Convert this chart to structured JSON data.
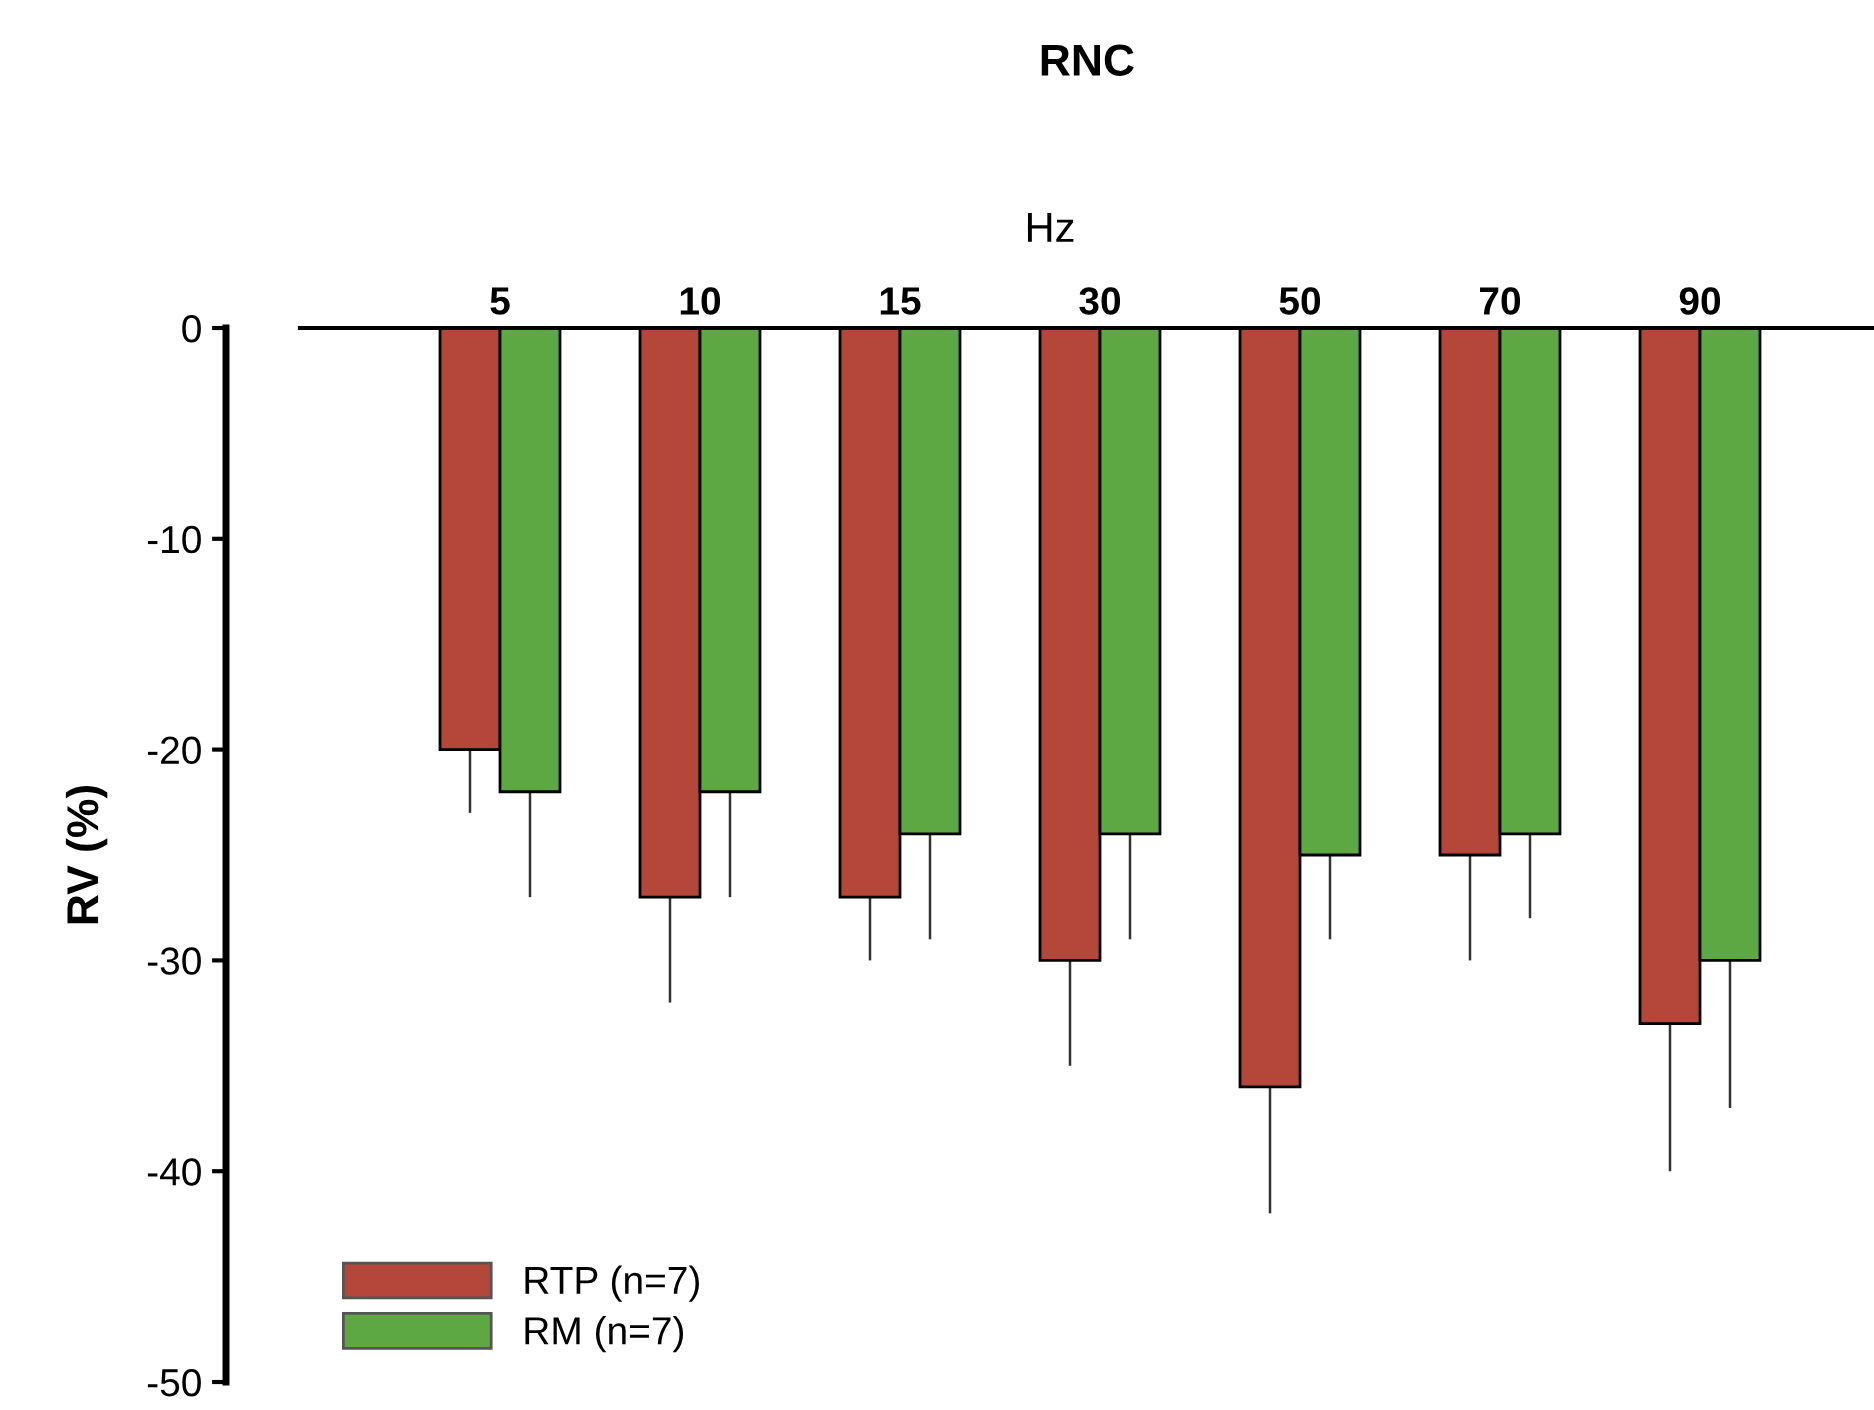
{
  "chart_data": {
    "type": "bar",
    "title": "RNC",
    "xlabel": "Hz",
    "ylabel": "RV (%)",
    "categories": [
      "5",
      "10",
      "15",
      "30",
      "50",
      "70",
      "90"
    ],
    "series": [
      {
        "name": "RTP (n=7)",
        "color": "#b5473a",
        "values": [
          -20,
          -27,
          -27,
          -30,
          -36,
          -25,
          -33
        ],
        "errors": [
          [
            -23,
            -20
          ],
          [
            -32,
            -27
          ],
          [
            -30,
            -27
          ],
          [
            -35,
            -30
          ],
          [
            -42,
            -36
          ],
          [
            -30,
            -25
          ],
          [
            -40,
            -33
          ]
        ]
      },
      {
        "name": "RM (n=7)",
        "color": "#5ea843",
        "values": [
          -22,
          -22,
          -24,
          -24,
          -25,
          -24,
          -30
        ],
        "errors": [
          [
            -27,
            -22
          ],
          [
            -27,
            -22
          ],
          [
            -29,
            -24
          ],
          [
            -29,
            -24
          ],
          [
            -29,
            -25
          ],
          [
            -28,
            -24
          ],
          [
            -37,
            -30
          ]
        ]
      }
    ],
    "ylim": [
      -50,
      0
    ],
    "yticks": [
      0,
      -10,
      -20,
      -30,
      -40,
      -50
    ],
    "grid": false,
    "legend": "bottom left"
  }
}
